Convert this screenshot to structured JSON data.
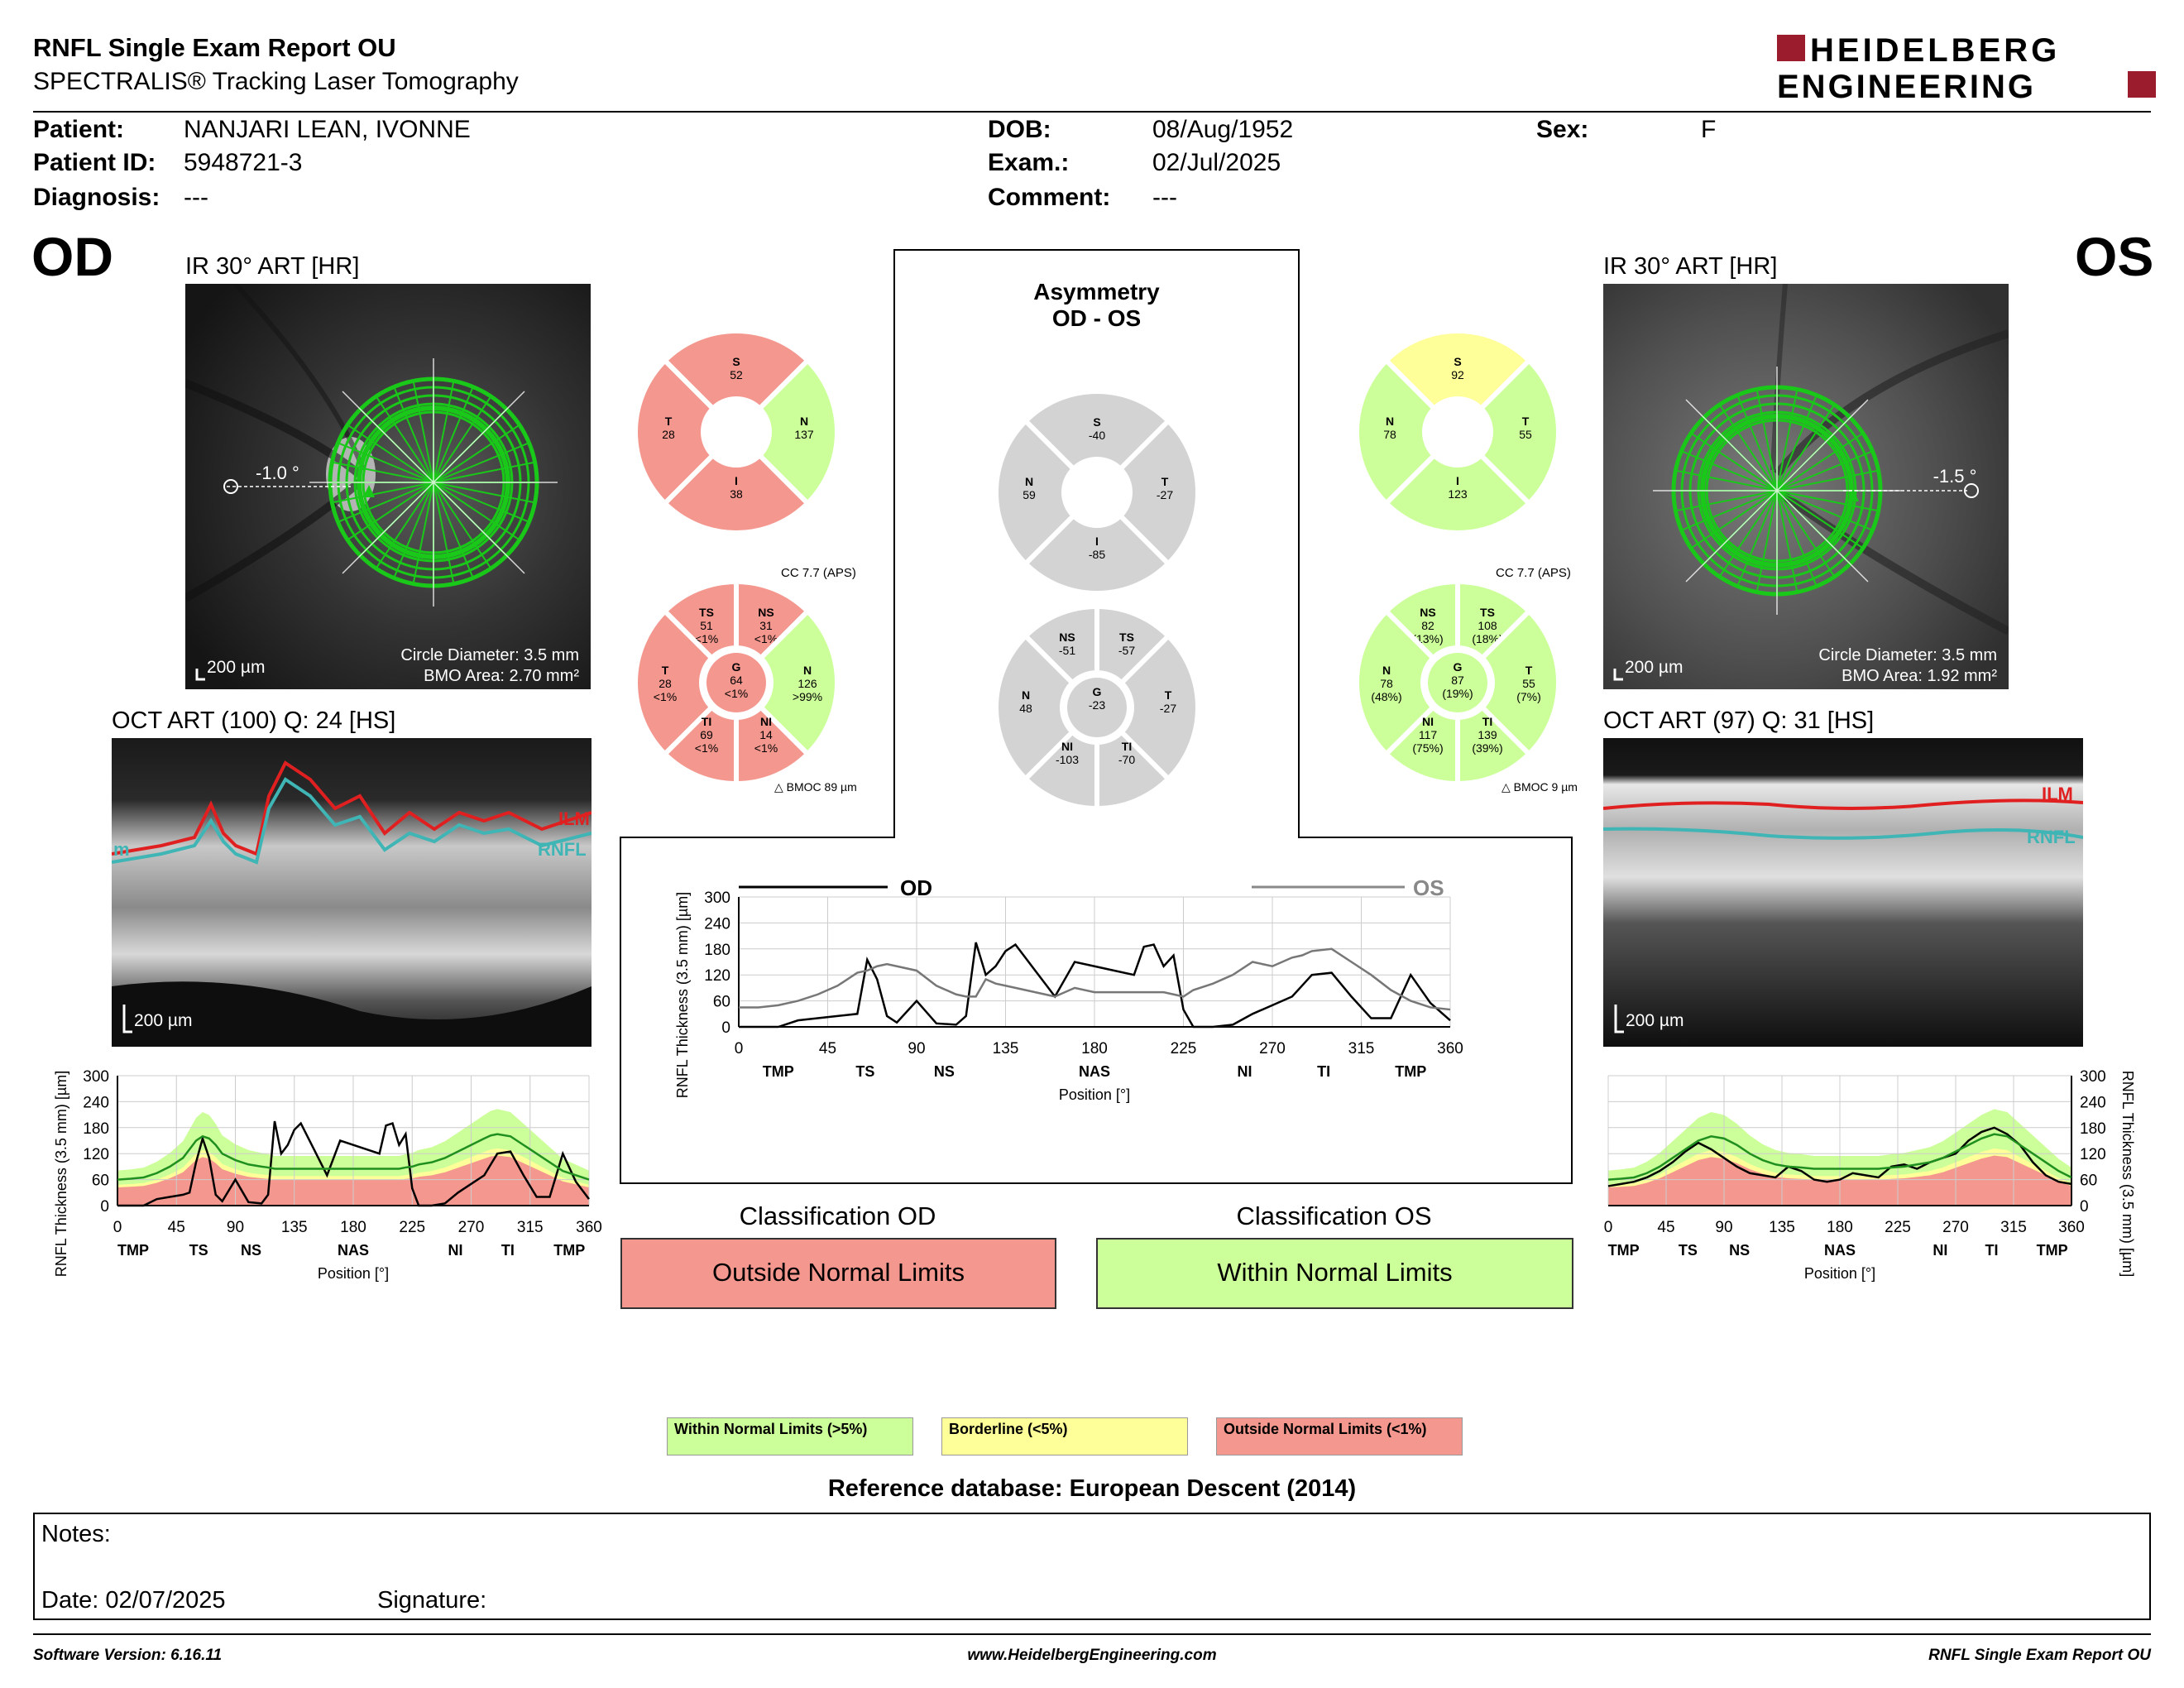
{
  "header": {
    "title": "RNFL Single Exam Report OU",
    "subtitle": "SPECTRALIS® Tracking Laser Tomography",
    "logo_line1": "HEIDELBERG",
    "logo_line2": "ENGINEERING"
  },
  "patient": {
    "patient_label": "Patient:",
    "patient_value": "NANJARI LEAN, IVONNE",
    "id_label": "Patient ID:",
    "id_value": "5948721-3",
    "diag_label": "Diagnosis:",
    "diag_value": "---",
    "dob_label": "DOB:",
    "dob_value": "08/Aug/1952",
    "exam_label": "Exam.:",
    "exam_value": "02/Jul/2025",
    "comment_label": "Comment:",
    "comment_value": "---",
    "sex_label": "Sex:",
    "sex_value": "F"
  },
  "od": {
    "eye": "OD",
    "ir_label": "IR 30° ART [HR]",
    "angle": "-1.0 °",
    "scale": "200 µm",
    "circle_diam": "Circle Diameter: 3.5 mm",
    "bmo_area": "BMO Area: 2.70 mm²",
    "oct_label": "OCT ART (100) Q: 24 [HS]",
    "oct_scale": "200 µm",
    "ilm": "ILM",
    "rnfl": "RNFL",
    "rnfl_left": "m",
    "sectors4": {
      "S": "52",
      "T": "28",
      "N": "137",
      "I": "38"
    },
    "cc": "CC 7.7 (APS)",
    "sectors6": {
      "TS": [
        "51",
        "<1%"
      ],
      "NS": [
        "31",
        "<1%"
      ],
      "T": [
        "28",
        "<1%"
      ],
      "G": [
        "64",
        "<1%"
      ],
      "N": [
        "126",
        ">99%"
      ],
      "TI": [
        "69",
        "<1%"
      ],
      "NI": [
        "14",
        "<1%"
      ]
    },
    "bmoc": "BMOC 89 µm"
  },
  "os": {
    "eye": "OS",
    "ir_label": "IR 30° ART [HR]",
    "angle": "-1.5 °",
    "scale": "200 µm",
    "circle_diam": "Circle Diameter: 3.5 mm",
    "bmo_area": "BMO Area: 1.92 mm²",
    "oct_label": "OCT ART (97) Q: 31 [HS]",
    "oct_scale": "200 µm",
    "ilm": "ILM",
    "rnfl": "RNFL",
    "sectors4": {
      "S": "92",
      "N": "78",
      "T": "55",
      "I": "123"
    },
    "cc": "CC 7.7 (APS)",
    "sectors6": {
      "NS": [
        "82",
        "(13%)"
      ],
      "TS": [
        "108",
        "(18%)"
      ],
      "N": [
        "78",
        "(48%)"
      ],
      "G": [
        "87",
        "(19%)"
      ],
      "T": [
        "55",
        "(7%)"
      ],
      "NI": [
        "117",
        "(75%)"
      ],
      "TI": [
        "139",
        "(39%)"
      ]
    },
    "bmoc": "BMOC 9 µm"
  },
  "asymmetry": {
    "title1": "Asymmetry",
    "title2": "OD - OS",
    "sectors4": {
      "S": "-40",
      "N": "59",
      "T": "-27",
      "I": "-85"
    },
    "sectors6": {
      "NS": "-51",
      "TS": "-57",
      "N": "48",
      "G": "-23",
      "T": "-27",
      "NI": "-103",
      "TI": "-70"
    }
  },
  "chart_data": [
    {
      "type": "line",
      "name": "od-thickness-profile",
      "xlabel": "Position [°]",
      "ylabel": "RNFL Thickness (3.5 mm) [µm]",
      "xlim": [
        0,
        360
      ],
      "ylim": [
        0,
        300
      ],
      "x_ticks": [
        0,
        45,
        90,
        135,
        180,
        225,
        270,
        315,
        360
      ],
      "y_ticks": [
        0,
        60,
        120,
        180,
        240,
        300
      ],
      "sector_labels": [
        {
          "label": "TMP",
          "x": 12
        },
        {
          "label": "TS",
          "x": 62
        },
        {
          "label": "NS",
          "x": 102
        },
        {
          "label": "NAS",
          "x": 180
        },
        {
          "label": "NI",
          "x": 258
        },
        {
          "label": "TI",
          "x": 298
        },
        {
          "label": "TMP",
          "x": 345
        }
      ],
      "x": [
        0,
        10,
        20,
        30,
        40,
        50,
        55,
        60,
        65,
        70,
        75,
        80,
        90,
        100,
        110,
        115,
        120,
        125,
        130,
        135,
        140,
        145,
        150,
        155,
        160,
        170,
        180,
        190,
        200,
        205,
        210,
        215,
        220,
        225,
        230,
        240,
        250,
        260,
        270,
        280,
        285,
        290,
        300,
        310,
        320,
        330,
        340,
        350,
        360
      ],
      "series": [
        {
          "name": "OD",
          "values": [
            0,
            0,
            0,
            15,
            20,
            25,
            30,
            100,
            155,
            110,
            25,
            10,
            60,
            8,
            5,
            25,
            195,
            120,
            140,
            175,
            190,
            160,
            130,
            100,
            70,
            150,
            140,
            130,
            120,
            185,
            190,
            140,
            165,
            40,
            0,
            0,
            5,
            30,
            50,
            70,
            95,
            120,
            125,
            70,
            20,
            20,
            120,
            55,
            15
          ]
        },
        {
          "name": "normal",
          "values": [
            60,
            62,
            65,
            75,
            90,
            110,
            130,
            150,
            160,
            155,
            140,
            120,
            105,
            95,
            90,
            88,
            85,
            85,
            85,
            85,
            85,
            85,
            85,
            85,
            85,
            85,
            85,
            85,
            85,
            85,
            85,
            85,
            88,
            90,
            95,
            100,
            110,
            125,
            140,
            155,
            162,
            165,
            160,
            140,
            120,
            100,
            80,
            70,
            60
          ]
        }
      ]
    },
    {
      "type": "line",
      "name": "os-thickness-profile",
      "xlabel": "Position [°]",
      "ylabel": "RNFL Thickness (3.5 mm) [µm]",
      "xlim": [
        0,
        360
      ],
      "ylim": [
        0,
        300
      ],
      "x_ticks": [
        0,
        45,
        90,
        135,
        180,
        225,
        270,
        315,
        360
      ],
      "y_ticks": [
        0,
        60,
        120,
        180,
        240,
        300
      ],
      "sector_labels": [
        {
          "label": "TMP",
          "x": 12
        },
        {
          "label": "TS",
          "x": 62
        },
        {
          "label": "NS",
          "x": 102
        },
        {
          "label": "NAS",
          "x": 180
        },
        {
          "label": "NI",
          "x": 258
        },
        {
          "label": "TI",
          "x": 298
        },
        {
          "label": "TMP",
          "x": 345
        }
      ],
      "x": [
        0,
        10,
        20,
        30,
        40,
        50,
        60,
        70,
        80,
        90,
        100,
        110,
        120,
        130,
        140,
        150,
        160,
        170,
        180,
        190,
        200,
        210,
        220,
        230,
        240,
        250,
        260,
        270,
        280,
        290,
        300,
        310,
        320,
        330,
        340,
        350,
        360
      ],
      "series": [
        {
          "name": "OS",
          "values": [
            45,
            50,
            55,
            65,
            80,
            100,
            125,
            145,
            130,
            110,
            90,
            75,
            70,
            65,
            90,
            80,
            60,
            55,
            60,
            75,
            70,
            65,
            90,
            95,
            85,
            100,
            110,
            120,
            150,
            170,
            180,
            165,
            140,
            100,
            70,
            55,
            50
          ]
        },
        {
          "name": "normal",
          "values": [
            60,
            62,
            65,
            75,
            90,
            110,
            130,
            150,
            160,
            155,
            140,
            120,
            105,
            95,
            90,
            88,
            85,
            85,
            85,
            85,
            85,
            85,
            88,
            90,
            95,
            100,
            110,
            125,
            140,
            155,
            165,
            160,
            140,
            120,
            100,
            80,
            65
          ]
        }
      ]
    },
    {
      "type": "line",
      "name": "asymmetry-thickness-profile",
      "xlabel": "Position [°]",
      "ylabel": "RNFL Thickness (3.5 mm) [µm]",
      "xlim": [
        0,
        360
      ],
      "ylim": [
        0,
        300
      ],
      "x_ticks": [
        0,
        45,
        90,
        135,
        180,
        225,
        270,
        315,
        360
      ],
      "y_ticks": [
        0,
        60,
        120,
        180,
        240,
        300
      ],
      "sector_labels": [
        {
          "label": "TMP",
          "x": 20
        },
        {
          "label": "TS",
          "x": 64
        },
        {
          "label": "NS",
          "x": 104
        },
        {
          "label": "NAS",
          "x": 180
        },
        {
          "label": "NI",
          "x": 256
        },
        {
          "label": "TI",
          "x": 296
        },
        {
          "label": "TMP",
          "x": 340
        }
      ],
      "x": [
        0,
        10,
        20,
        30,
        40,
        50,
        60,
        65,
        70,
        75,
        80,
        90,
        100,
        110,
        115,
        120,
        125,
        130,
        135,
        140,
        145,
        150,
        155,
        160,
        170,
        180,
        190,
        200,
        205,
        210,
        215,
        220,
        225,
        230,
        240,
        250,
        260,
        270,
        280,
        285,
        290,
        300,
        310,
        320,
        330,
        340,
        350,
        360
      ],
      "series": [
        {
          "name": "OD",
          "values": [
            0,
            0,
            0,
            15,
            20,
            25,
            30,
            155,
            110,
            25,
            10,
            60,
            8,
            5,
            25,
            195,
            120,
            140,
            175,
            190,
            160,
            130,
            100,
            70,
            150,
            140,
            130,
            120,
            185,
            190,
            140,
            165,
            40,
            0,
            0,
            5,
            30,
            50,
            70,
            95,
            120,
            125,
            70,
            20,
            20,
            120,
            55,
            15
          ]
        },
        {
          "name": "OS",
          "values": [
            45,
            45,
            50,
            60,
            75,
            95,
            125,
            130,
            140,
            145,
            140,
            130,
            95,
            75,
            70,
            70,
            110,
            100,
            95,
            90,
            85,
            80,
            75,
            70,
            90,
            80,
            80,
            80,
            80,
            80,
            80,
            75,
            70,
            85,
            100,
            120,
            150,
            140,
            160,
            165,
            175,
            180,
            150,
            120,
            85,
            60,
            45,
            40
          ]
        }
      ],
      "legend": [
        "OD",
        "OS"
      ]
    }
  ],
  "classification": {
    "od_title": "Classification OD",
    "od_value": "Outside Normal Limits",
    "os_title": "Classification OS",
    "os_value": "Within Normal Limits"
  },
  "legend": {
    "within": "Within Normal Limits (>5%)",
    "borderline": "Borderline (<5%)",
    "outside": "Outside Normal Limits (<1%)"
  },
  "reference_db": "Reference database: European Descent (2014)",
  "notes": {
    "notes_label": "Notes:",
    "date_label": "Date: 02/07/2025",
    "signature_label": "Signature:"
  },
  "footer": {
    "software": "Software Version: 6.16.11",
    "website": "www.HeidelbergEngineering.com",
    "report": "RNFL Single Exam Report OU"
  },
  "colors": {
    "green": "#ccff99",
    "yellow": "#ffff99",
    "red": "#f4978e",
    "gray": "#d3d3d3",
    "logo_red": "#9b1c2c",
    "ilm": "#e02020",
    "rnfl": "#3fb5b5"
  }
}
